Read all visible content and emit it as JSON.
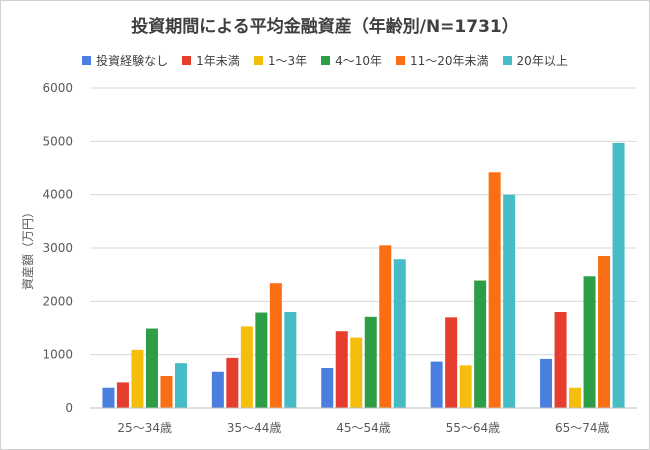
{
  "chart_data": {
    "type": "bar",
    "title": "投資期間による平均金融資産（年齢別/N=1731）",
    "xlabel": "",
    "ylabel": "資産額（万円）",
    "ylim": [
      0,
      6000
    ],
    "yticks": [
      0,
      1000,
      2000,
      3000,
      4000,
      5000,
      6000
    ],
    "grid": true,
    "legend_position": "top",
    "categories": [
      "25〜34歳",
      "35〜44歳",
      "45〜54歳",
      "55〜64歳",
      "65〜74歳"
    ],
    "series": [
      {
        "name": "投資経験なし",
        "color": "#4a7fe0",
        "values": [
          380,
          680,
          750,
          870,
          920
        ]
      },
      {
        "name": "1年未満",
        "color": "#e53e2f",
        "values": [
          480,
          940,
          1440,
          1700,
          1800
        ]
      },
      {
        "name": "1〜3年",
        "color": "#f5be0b",
        "values": [
          1090,
          1530,
          1320,
          800,
          380
        ]
      },
      {
        "name": "4〜10年",
        "color": "#2e9e46",
        "values": [
          1490,
          1790,
          1710,
          2390,
          2470
        ]
      },
      {
        "name": "11〜20年未満",
        "color": "#fb6f14",
        "values": [
          600,
          2340,
          3050,
          4420,
          2850
        ]
      },
      {
        "name": "20年以上",
        "color": "#45bcc6",
        "values": [
          840,
          1800,
          2790,
          4000,
          4970
        ]
      }
    ]
  }
}
